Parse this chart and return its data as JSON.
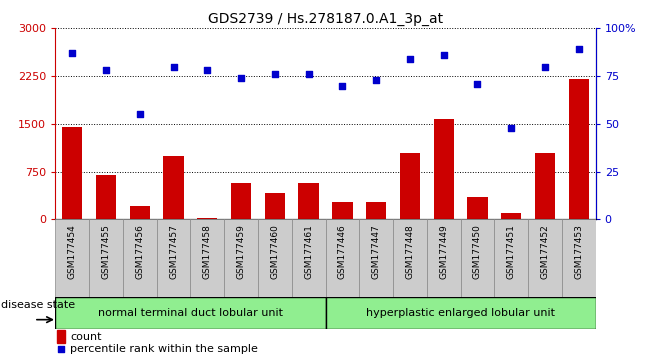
{
  "title": "GDS2739 / Hs.278187.0.A1_3p_at",
  "categories": [
    "GSM177454",
    "GSM177455",
    "GSM177456",
    "GSM177457",
    "GSM177458",
    "GSM177459",
    "GSM177460",
    "GSM177461",
    "GSM177446",
    "GSM177447",
    "GSM177448",
    "GSM177449",
    "GSM177450",
    "GSM177451",
    "GSM177452",
    "GSM177453"
  ],
  "bar_values": [
    1450,
    700,
    210,
    1000,
    30,
    580,
    420,
    570,
    270,
    270,
    1050,
    1570,
    360,
    100,
    1050,
    2200
  ],
  "scatter_values": [
    87,
    78,
    55,
    80,
    78,
    74,
    76,
    76,
    70,
    73,
    84,
    86,
    71,
    48,
    80,
    89
  ],
  "bar_color": "#cc0000",
  "scatter_color": "#0000cc",
  "ylim_left": [
    0,
    3000
  ],
  "ylim_right": [
    0,
    100
  ],
  "yticks_left": [
    0,
    750,
    1500,
    2250,
    3000
  ],
  "yticks_right": [
    0,
    25,
    50,
    75,
    100
  ],
  "ytick_labels_right": [
    "0",
    "25",
    "50",
    "75",
    "100%"
  ],
  "group1_label": "normal terminal duct lobular unit",
  "group2_label": "hyperplastic enlarged lobular unit",
  "group1_count": 8,
  "group2_count": 8,
  "legend_count_label": "count",
  "legend_percentile_label": "percentile rank within the sample",
  "disease_state_label": "disease state",
  "group_bg_color": "#90ee90",
  "xtick_bg_color": "#cccccc",
  "bar_width": 0.6,
  "title_fontsize": 10,
  "tick_fontsize": 8,
  "label_fontsize": 8
}
